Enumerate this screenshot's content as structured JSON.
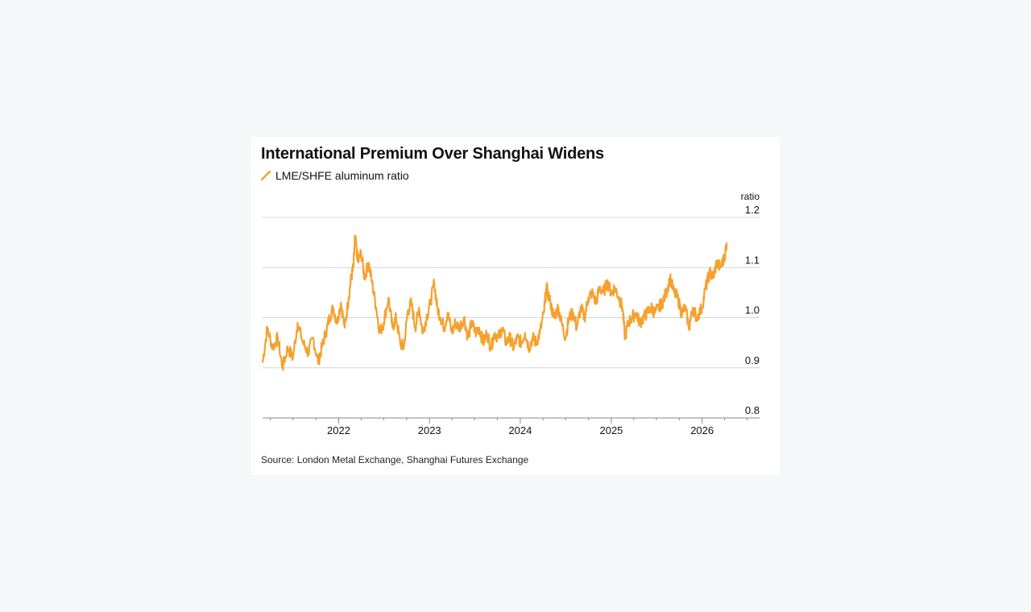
{
  "chart_data": {
    "type": "line",
    "title": "International Premium Over Shanghai Widens",
    "legend_position": "top-left",
    "unit_label": "ratio",
    "source": "Source: London Metal Exchange, Shanghai Futures Exchange",
    "ylim": [
      0.8,
      1.2
    ],
    "yticks": [
      {
        "value": 1.2,
        "label": "1.2"
      },
      {
        "value": 1.1,
        "label": "1.1"
      },
      {
        "value": 1.0,
        "label": "1.0"
      },
      {
        "value": 0.9,
        "label": "0.9"
      },
      {
        "value": 0.8,
        "label": "0.8"
      }
    ],
    "xlim": [
      "2021-03-01",
      "2026-08-20"
    ],
    "xticks": [
      {
        "value": "2022-01-01",
        "label": "2022"
      },
      {
        "value": "2023-01-01",
        "label": "2023"
      },
      {
        "value": "2024-01-01",
        "label": "2024"
      },
      {
        "value": "2025-01-01",
        "label": "2025"
      },
      {
        "value": "2026-01-01",
        "label": "2026"
      }
    ],
    "grid": true,
    "series": [
      {
        "name": "LME/SHFE aluminum ratio",
        "color": "#f5a12f",
        "points": [
          [
            "2021-03-01",
            0.91
          ],
          [
            "2021-03-20",
            0.98
          ],
          [
            "2021-04-10",
            0.94
          ],
          [
            "2021-05-01",
            0.96
          ],
          [
            "2021-05-20",
            0.9
          ],
          [
            "2021-06-10",
            0.94
          ],
          [
            "2021-07-01",
            0.92
          ],
          [
            "2021-07-20",
            0.99
          ],
          [
            "2021-08-10",
            0.95
          ],
          [
            "2021-09-01",
            0.93
          ],
          [
            "2021-09-20",
            0.96
          ],
          [
            "2021-10-10",
            0.91
          ],
          [
            "2021-10-25",
            0.94
          ],
          [
            "2021-11-10",
            0.97
          ],
          [
            "2021-11-25",
            1.0
          ],
          [
            "2021-12-10",
            1.02
          ],
          [
            "2021-12-25",
            0.99
          ],
          [
            "2022-01-10",
            1.03
          ],
          [
            "2022-01-25",
            0.98
          ],
          [
            "2022-02-10",
            1.04
          ],
          [
            "2022-02-20",
            1.08
          ],
          [
            "2022-03-01",
            1.1
          ],
          [
            "2022-03-08",
            1.16
          ],
          [
            "2022-03-20",
            1.11
          ],
          [
            "2022-04-01",
            1.13
          ],
          [
            "2022-04-15",
            1.08
          ],
          [
            "2022-05-01",
            1.11
          ],
          [
            "2022-05-15",
            1.07
          ],
          [
            "2022-06-01",
            1.02
          ],
          [
            "2022-06-15",
            0.97
          ],
          [
            "2022-07-01",
            0.99
          ],
          [
            "2022-07-20",
            1.04
          ],
          [
            "2022-08-05",
            0.98
          ],
          [
            "2022-08-20",
            1.0
          ],
          [
            "2022-09-05",
            0.95
          ],
          [
            "2022-09-20",
            0.94
          ],
          [
            "2022-10-05",
            1.01
          ],
          [
            "2022-10-20",
            1.03
          ],
          [
            "2022-11-05",
            0.98
          ],
          [
            "2022-11-20",
            1.02
          ],
          [
            "2022-12-05",
            0.97
          ],
          [
            "2022-12-20",
            1.0
          ],
          [
            "2023-01-05",
            1.03
          ],
          [
            "2023-01-20",
            1.07
          ],
          [
            "2023-02-01",
            1.02
          ],
          [
            "2023-02-15",
            1.0
          ],
          [
            "2023-03-01",
            0.98
          ],
          [
            "2023-03-15",
            1.01
          ],
          [
            "2023-04-01",
            0.97
          ],
          [
            "2023-04-15",
            0.99
          ],
          [
            "2023-05-01",
            0.98
          ],
          [
            "2023-05-20",
            1.0
          ],
          [
            "2023-06-05",
            0.96
          ],
          [
            "2023-06-20",
            0.99
          ],
          [
            "2023-07-05",
            0.97
          ],
          [
            "2023-07-20",
            0.98
          ],
          [
            "2023-08-05",
            0.95
          ],
          [
            "2023-08-20",
            0.97
          ],
          [
            "2023-09-05",
            0.94
          ],
          [
            "2023-09-20",
            0.97
          ],
          [
            "2023-10-05",
            0.96
          ],
          [
            "2023-10-20",
            0.98
          ],
          [
            "2023-11-05",
            0.95
          ],
          [
            "2023-11-20",
            0.96
          ],
          [
            "2023-12-05",
            0.94
          ],
          [
            "2023-12-20",
            0.96
          ],
          [
            "2024-01-05",
            0.95
          ],
          [
            "2024-01-20",
            0.97
          ],
          [
            "2024-02-05",
            0.94
          ],
          [
            "2024-02-20",
            0.96
          ],
          [
            "2024-03-05",
            0.95
          ],
          [
            "2024-03-20",
            0.97
          ],
          [
            "2024-04-05",
            1.01
          ],
          [
            "2024-04-15",
            1.06
          ],
          [
            "2024-05-01",
            1.03
          ],
          [
            "2024-05-15",
            1.0
          ],
          [
            "2024-06-01",
            1.02
          ],
          [
            "2024-06-15",
            0.99
          ],
          [
            "2024-07-01",
            0.96
          ],
          [
            "2024-07-15",
            1.0
          ],
          [
            "2024-08-01",
            1.01
          ],
          [
            "2024-08-15",
            0.98
          ],
          [
            "2024-09-01",
            1.02
          ],
          [
            "2024-09-15",
            1.0
          ],
          [
            "2024-10-01",
            1.04
          ],
          [
            "2024-10-15",
            1.05
          ],
          [
            "2024-11-01",
            1.03
          ],
          [
            "2024-11-15",
            1.06
          ],
          [
            "2024-12-01",
            1.05
          ],
          [
            "2024-12-15",
            1.07
          ],
          [
            "2025-01-01",
            1.05
          ],
          [
            "2025-01-15",
            1.06
          ],
          [
            "2025-02-01",
            1.04
          ],
          [
            "2025-02-15",
            1.02
          ],
          [
            "2025-02-25",
            0.96
          ],
          [
            "2025-03-10",
            0.99
          ],
          [
            "2025-03-25",
            1.0
          ],
          [
            "2025-04-10",
            1.01
          ],
          [
            "2025-04-25",
            0.99
          ],
          [
            "2025-05-10",
            1.0
          ],
          [
            "2025-05-25",
            1.01
          ],
          [
            "2025-06-10",
            1.02
          ],
          [
            "2025-06-25",
            1.01
          ],
          [
            "2025-07-10",
            1.02
          ],
          [
            "2025-07-25",
            1.03
          ],
          [
            "2025-08-10",
            1.05
          ],
          [
            "2025-08-25",
            1.08
          ],
          [
            "2025-09-10",
            1.05
          ],
          [
            "2025-09-25",
            1.04
          ],
          [
            "2025-10-10",
            1.01
          ],
          [
            "2025-10-25",
            1.02
          ],
          [
            "2025-11-10",
            0.98
          ],
          [
            "2025-11-25",
            1.02
          ],
          [
            "2025-12-10",
            1.0
          ],
          [
            "2026-01-01",
            1.02
          ],
          [
            "2026-01-15",
            1.06
          ],
          [
            "2026-02-01",
            1.09
          ],
          [
            "2026-02-15",
            1.08
          ],
          [
            "2026-03-01",
            1.11
          ],
          [
            "2026-03-15",
            1.1
          ],
          [
            "2026-04-01",
            1.12
          ],
          [
            "2026-04-10",
            1.15
          ]
        ]
      }
    ]
  }
}
